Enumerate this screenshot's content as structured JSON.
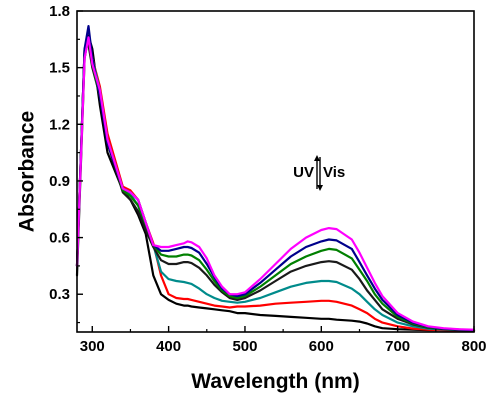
{
  "chart_data": {
    "type": "line",
    "xlabel": "Wavelength (nm)",
    "ylabel": "Absorbance",
    "xlim": [
      280,
      800
    ],
    "ylim": [
      0.1,
      1.8
    ],
    "x_ticks": [
      300,
      400,
      500,
      600,
      700,
      800
    ],
    "y_ticks": [
      0.3,
      0.6,
      0.9,
      1.2,
      1.5,
      1.8
    ],
    "x_tick_labels": [
      "300",
      "400",
      "500",
      "600",
      "700",
      "800"
    ],
    "y_tick_labels": [
      "0.3",
      "0.6",
      "0.9",
      "1.2",
      "1.5",
      "1.8"
    ],
    "annotation": {
      "left_text": "UV",
      "right_text": "Vis",
      "meaning": "arrows pointing up and down between UV and Vis"
    },
    "grid": false,
    "legend": "none",
    "x": [
      280,
      290,
      295,
      300,
      310,
      320,
      340,
      350,
      360,
      370,
      380,
      390,
      400,
      410,
      420,
      425,
      430,
      440,
      450,
      460,
      470,
      480,
      490,
      500,
      520,
      540,
      560,
      580,
      600,
      610,
      620,
      640,
      650,
      660,
      670,
      680,
      700,
      720,
      740,
      760,
      780,
      800
    ],
    "series": [
      {
        "color": "#000000",
        "values": [
          0.4,
          1.55,
          1.67,
          1.6,
          1.3,
          1.05,
          0.85,
          0.8,
          0.72,
          0.62,
          0.4,
          0.3,
          0.27,
          0.25,
          0.24,
          0.24,
          0.235,
          0.23,
          0.225,
          0.22,
          0.215,
          0.21,
          0.2,
          0.2,
          0.19,
          0.185,
          0.18,
          0.175,
          0.17,
          0.17,
          0.165,
          0.16,
          0.155,
          0.145,
          0.13,
          0.12,
          0.115,
          0.112,
          0.11,
          0.11,
          0.108,
          0.105
        ]
      },
      {
        "color": "#ff0000",
        "values": [
          0.45,
          1.6,
          1.65,
          1.55,
          1.4,
          1.15,
          0.87,
          0.85,
          0.8,
          0.68,
          0.57,
          0.4,
          0.3,
          0.28,
          0.275,
          0.275,
          0.27,
          0.26,
          0.25,
          0.24,
          0.235,
          0.23,
          0.235,
          0.235,
          0.24,
          0.25,
          0.255,
          0.26,
          0.265,
          0.265,
          0.26,
          0.24,
          0.22,
          0.2,
          0.17,
          0.15,
          0.13,
          0.118,
          0.112,
          0.11,
          0.108,
          0.105
        ]
      },
      {
        "color": "#008b8b",
        "values": [
          0.45,
          1.6,
          1.66,
          1.55,
          1.38,
          1.12,
          0.86,
          0.83,
          0.77,
          0.66,
          0.56,
          0.42,
          0.38,
          0.37,
          0.365,
          0.36,
          0.355,
          0.33,
          0.3,
          0.28,
          0.265,
          0.26,
          0.255,
          0.26,
          0.28,
          0.31,
          0.34,
          0.36,
          0.37,
          0.37,
          0.365,
          0.33,
          0.3,
          0.26,
          0.22,
          0.19,
          0.15,
          0.13,
          0.118,
          0.113,
          0.11,
          0.108
        ]
      },
      {
        "color": "#1a1a1a",
        "values": [
          0.45,
          1.6,
          1.62,
          1.5,
          1.35,
          1.1,
          0.84,
          0.8,
          0.74,
          0.64,
          0.55,
          0.48,
          0.46,
          0.46,
          0.47,
          0.47,
          0.465,
          0.44,
          0.4,
          0.35,
          0.31,
          0.28,
          0.27,
          0.28,
          0.32,
          0.37,
          0.42,
          0.45,
          0.47,
          0.475,
          0.47,
          0.43,
          0.38,
          0.32,
          0.27,
          0.22,
          0.17,
          0.14,
          0.122,
          0.115,
          0.11,
          0.108
        ]
      },
      {
        "color": "#008000",
        "values": [
          0.45,
          1.58,
          1.66,
          1.52,
          1.35,
          1.12,
          0.85,
          0.82,
          0.77,
          0.67,
          0.56,
          0.51,
          0.5,
          0.5,
          0.51,
          0.51,
          0.505,
          0.48,
          0.43,
          0.37,
          0.32,
          0.29,
          0.28,
          0.29,
          0.34,
          0.4,
          0.46,
          0.5,
          0.53,
          0.54,
          0.535,
          0.49,
          0.43,
          0.37,
          0.3,
          0.25,
          0.18,
          0.145,
          0.125,
          0.117,
          0.112,
          0.109
        ]
      },
      {
        "color": "#00008b",
        "values": [
          0.45,
          1.6,
          1.72,
          1.55,
          1.35,
          1.1,
          0.86,
          0.84,
          0.8,
          0.68,
          0.56,
          0.53,
          0.53,
          0.54,
          0.55,
          0.55,
          0.545,
          0.52,
          0.46,
          0.39,
          0.33,
          0.3,
          0.29,
          0.3,
          0.36,
          0.43,
          0.5,
          0.55,
          0.58,
          0.59,
          0.585,
          0.54,
          0.47,
          0.4,
          0.33,
          0.27,
          0.19,
          0.15,
          0.128,
          0.118,
          0.113,
          0.11
        ]
      },
      {
        "color": "#ff00ff",
        "values": [
          0.45,
          1.55,
          1.66,
          1.52,
          1.38,
          1.12,
          0.86,
          0.84,
          0.8,
          0.68,
          0.56,
          0.55,
          0.55,
          0.56,
          0.57,
          0.58,
          0.575,
          0.55,
          0.49,
          0.4,
          0.34,
          0.3,
          0.3,
          0.31,
          0.38,
          0.46,
          0.54,
          0.6,
          0.64,
          0.65,
          0.645,
          0.59,
          0.52,
          0.44,
          0.36,
          0.29,
          0.2,
          0.155,
          0.13,
          0.12,
          0.115,
          0.112
        ]
      }
    ]
  }
}
